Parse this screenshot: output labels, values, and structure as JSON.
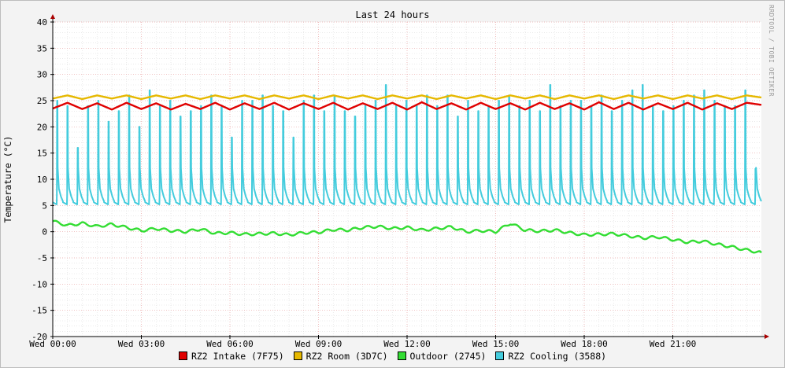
{
  "chart_data": {
    "type": "line",
    "title": "Last 24 hours",
    "ylabel": "Temperature (°C)",
    "xlabel": "",
    "ylim": [
      -20,
      40
    ],
    "yticks": [
      40,
      35,
      30,
      25,
      20,
      15,
      10,
      5,
      0,
      -5,
      -10,
      -15,
      -20
    ],
    "ytick_labels": [
      "40",
      "35",
      "30",
      "25",
      "20",
      "15",
      "10",
      "5",
      "0",
      "-5",
      "-10",
      "-15",
      "-20"
    ],
    "xlim_hours": [
      0,
      24
    ],
    "xticks": [
      {
        "hour": 0,
        "label": "Wed 00:00"
      },
      {
        "hour": 3,
        "label": "Wed 03:00"
      },
      {
        "hour": 6,
        "label": "Wed 06:00"
      },
      {
        "hour": 9,
        "label": "Wed 09:00"
      },
      {
        "hour": 12,
        "label": "Wed 12:00"
      },
      {
        "hour": 15,
        "label": "Wed 15:00"
      },
      {
        "hour": 18,
        "label": "Wed 18:00"
      },
      {
        "hour": 21,
        "label": "Wed 21:00"
      }
    ],
    "grid": true,
    "legend_position": "bottom",
    "watermark": "RRDTOOL / TOBI OETIKER",
    "series": [
      {
        "name": "RZ2 Intake (7F75)",
        "color": "#e00000",
        "hours": [
          0,
          0.5,
          1,
          1.5,
          2,
          2.5,
          3,
          3.5,
          4,
          4.5,
          5,
          5.5,
          6,
          6.5,
          7,
          7.5,
          8,
          8.5,
          9,
          9.5,
          10,
          10.5,
          11,
          11.5,
          12,
          12.5,
          13,
          13.5,
          14,
          14.5,
          15,
          15.5,
          16,
          16.5,
          17,
          17.5,
          18,
          18.5,
          19,
          19.5,
          20,
          20.5,
          21,
          21.5,
          22,
          22.5,
          23,
          23.5,
          24
        ],
        "values": [
          23.5,
          24.6,
          23.4,
          24.5,
          23.3,
          24.6,
          23.4,
          24.5,
          23.3,
          24.4,
          23.4,
          24.6,
          23.3,
          24.5,
          23.4,
          24.6,
          23.3,
          24.5,
          23.4,
          24.6,
          23.3,
          24.5,
          23.4,
          24.6,
          23.3,
          24.7,
          23.4,
          24.5,
          23.3,
          24.6,
          23.4,
          24.5,
          23.3,
          24.6,
          23.4,
          24.5,
          23.3,
          24.7,
          23.4,
          24.6,
          23.3,
          24.5,
          23.4,
          24.6,
          23.3,
          24.5,
          23.4,
          24.6,
          24.2
        ]
      },
      {
        "name": "RZ2 Room (3D7C)",
        "color": "#e6b800",
        "hours": [
          0,
          0.5,
          1,
          1.5,
          2,
          2.5,
          3,
          3.5,
          4,
          4.5,
          5,
          5.5,
          6,
          6.5,
          7,
          7.5,
          8,
          8.5,
          9,
          9.5,
          10,
          10.5,
          11,
          11.5,
          12,
          12.5,
          13,
          13.5,
          14,
          14.5,
          15,
          15.5,
          16,
          16.5,
          17,
          17.5,
          18,
          18.5,
          19,
          19.5,
          20,
          20.5,
          21,
          21.5,
          22,
          22.5,
          23,
          23.5,
          24
        ],
        "values": [
          25.4,
          26.0,
          25.3,
          26.0,
          25.4,
          26.0,
          25.3,
          26.0,
          25.4,
          26.0,
          25.3,
          26.0,
          25.4,
          26.0,
          25.3,
          26.0,
          25.4,
          26.0,
          25.3,
          26.0,
          25.4,
          26.0,
          25.3,
          26.0,
          25.4,
          26.0,
          25.3,
          26.0,
          25.4,
          26.0,
          25.3,
          26.0,
          25.4,
          26.0,
          25.3,
          26.0,
          25.4,
          26.0,
          25.3,
          26.0,
          25.4,
          26.0,
          25.3,
          26.0,
          25.4,
          26.0,
          25.3,
          26.0,
          25.6
        ]
      },
      {
        "name": "Outdoor (2745)",
        "color": "#33dd33",
        "hours": [
          0,
          0.5,
          1,
          1.5,
          2,
          2.5,
          3,
          3.5,
          4,
          4.5,
          5,
          5.5,
          6,
          6.5,
          7,
          7.5,
          8,
          8.5,
          9,
          9.5,
          10,
          10.5,
          11,
          11.5,
          12,
          12.5,
          13,
          13.5,
          14,
          14.5,
          15,
          15.5,
          16,
          16.5,
          17,
          17.5,
          18,
          18.5,
          19,
          19.5,
          20,
          20.5,
          21,
          21.5,
          22,
          22.5,
          23,
          23.5,
          24
        ],
        "values": [
          2.0,
          1.2,
          1.6,
          1.0,
          1.4,
          0.8,
          0.2,
          0.6,
          0.2,
          0.0,
          0.5,
          -0.3,
          -0.2,
          -0.5,
          -0.4,
          -0.3,
          -0.6,
          -0.2,
          -0.1,
          0.4,
          0.3,
          0.8,
          1.0,
          0.6,
          0.8,
          0.3,
          0.6,
          0.9,
          0.0,
          0.2,
          0.0,
          1.6,
          0.3,
          0.1,
          0.3,
          -0.2,
          -0.6,
          -0.5,
          -0.4,
          -0.8,
          -1.2,
          -1.0,
          -1.5,
          -2.0,
          -1.8,
          -2.4,
          -2.9,
          -3.5,
          -4.0
        ]
      },
      {
        "name": "RZ2 Cooling (3588)",
        "color": "#44ccdd",
        "cycle_count": 69,
        "baseline": 5.2,
        "peak_values": [
          25,
          24,
          16,
          24,
          25,
          21,
          23,
          26,
          20,
          27,
          24,
          25,
          22,
          23,
          24,
          26,
          24,
          18,
          25,
          25,
          26,
          24,
          23,
          18,
          25,
          26,
          23,
          26,
          23,
          22,
          24,
          25,
          28,
          24,
          25,
          24,
          26,
          24,
          26,
          22,
          25,
          23,
          24,
          25,
          26,
          24,
          25,
          23,
          28,
          24,
          25,
          25,
          24,
          26,
          23,
          25,
          27,
          28,
          24,
          23,
          24,
          25,
          26,
          27,
          25,
          24,
          24,
          27,
          12
        ]
      }
    ]
  }
}
